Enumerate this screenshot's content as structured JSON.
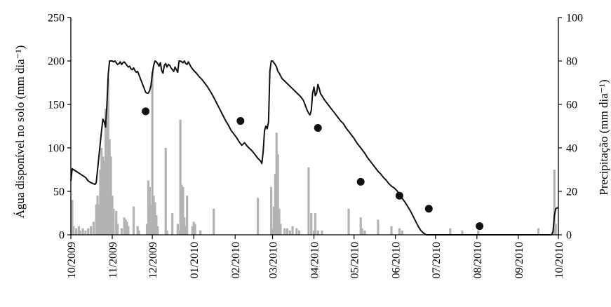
{
  "chart_data": {
    "type": "bar",
    "ylabel_left": "Água disponível no solo (mm dia⁻¹)",
    "ylabel_right": "Precipitação (mm dia⁻¹)",
    "y_left_range": [
      0,
      250
    ],
    "y_left_ticks": [
      "0",
      "50",
      "100",
      "150",
      "200",
      "250"
    ],
    "y_right_range": [
      0,
      100
    ],
    "y_right_ticks": [
      "0",
      "20",
      "40",
      "60",
      "80",
      "100"
    ],
    "x_range": [
      0,
      365
    ],
    "x_ticks": [
      {
        "x": 0,
        "label": "10/2009"
      },
      {
        "x": 31,
        "label": "11/2009"
      },
      {
        "x": 61,
        "label": "12/2009"
      },
      {
        "x": 92,
        "label": "01/2010"
      },
      {
        "x": 123,
        "label": "02/2010"
      },
      {
        "x": 151,
        "label": "03/2010"
      },
      {
        "x": 182,
        "label": "04/2010"
      },
      {
        "x": 212,
        "label": "05/2010"
      },
      {
        "x": 243,
        "label": "06/2010"
      },
      {
        "x": 273,
        "label": "07/2010"
      },
      {
        "x": 304,
        "label": "08/2010"
      },
      {
        "x": 335,
        "label": "09/2010"
      },
      {
        "x": 365,
        "label": "10/2010"
      }
    ],
    "grid": false,
    "colors": {
      "water_line": "#111111",
      "rain_bars": "#b3b3b3",
      "points": "#111111"
    },
    "series": [
      {
        "type": "line",
        "axis": "left",
        "points": [
          [
            0,
            62
          ],
          [
            1,
            76
          ],
          [
            3,
            74
          ],
          [
            5,
            72
          ],
          [
            7,
            70
          ],
          [
            9,
            68
          ],
          [
            11,
            66
          ],
          [
            13,
            62
          ],
          [
            15,
            60
          ],
          [
            18,
            58
          ],
          [
            19,
            60
          ],
          [
            20,
            75
          ],
          [
            21,
            90
          ],
          [
            22,
            105
          ],
          [
            23,
            120
          ],
          [
            24,
            133
          ],
          [
            25,
            130
          ],
          [
            26,
            124
          ],
          [
            27,
            150
          ],
          [
            28,
            185
          ],
          [
            29,
            200
          ],
          [
            30,
            200
          ],
          [
            31,
            200
          ],
          [
            32,
            199
          ],
          [
            33,
            200
          ],
          [
            34,
            198
          ],
          [
            35,
            196
          ],
          [
            36,
            197
          ],
          [
            37,
            199
          ],
          [
            38,
            196
          ],
          [
            39,
            198
          ],
          [
            40,
            199
          ],
          [
            41,
            197
          ],
          [
            42,
            195
          ],
          [
            43,
            193
          ],
          [
            44,
            194
          ],
          [
            45,
            191
          ],
          [
            46,
            190
          ],
          [
            47,
            192
          ],
          [
            48,
            189
          ],
          [
            49,
            187
          ],
          [
            50,
            188
          ],
          [
            51,
            184
          ],
          [
            52,
            180
          ],
          [
            53,
            176
          ],
          [
            54,
            172
          ],
          [
            55,
            168
          ],
          [
            56,
            164
          ],
          [
            57,
            163
          ],
          [
            58,
            163
          ],
          [
            59,
            166
          ],
          [
            60,
            172
          ],
          [
            61,
            185
          ],
          [
            62,
            195
          ],
          [
            63,
            200
          ],
          [
            64,
            199
          ],
          [
            65,
            197
          ],
          [
            66,
            194
          ],
          [
            67,
            198
          ],
          [
            68,
            189
          ],
          [
            69,
            186
          ],
          [
            70,
            195
          ],
          [
            71,
            197
          ],
          [
            72,
            193
          ],
          [
            73,
            196
          ],
          [
            74,
            195
          ],
          [
            75,
            192
          ],
          [
            76,
            190
          ],
          [
            77,
            188
          ],
          [
            78,
            193
          ],
          [
            79,
            190
          ],
          [
            80,
            187
          ],
          [
            81,
            200
          ],
          [
            82,
            200
          ],
          [
            83,
            199
          ],
          [
            84,
            198
          ],
          [
            85,
            200
          ],
          [
            86,
            197
          ],
          [
            87,
            196
          ],
          [
            88,
            199
          ],
          [
            89,
            196
          ],
          [
            90,
            193
          ],
          [
            92,
            189
          ],
          [
            94,
            186
          ],
          [
            96,
            182
          ],
          [
            98,
            179
          ],
          [
            100,
            175
          ],
          [
            102,
            171
          ],
          [
            104,
            166
          ],
          [
            106,
            161
          ],
          [
            108,
            155
          ],
          [
            110,
            149
          ],
          [
            112,
            143
          ],
          [
            114,
            137
          ],
          [
            116,
            131
          ],
          [
            118,
            126
          ],
          [
            120,
            120
          ],
          [
            122,
            116
          ],
          [
            124,
            112
          ],
          [
            126,
            107
          ],
          [
            128,
            103
          ],
          [
            130,
            106
          ],
          [
            132,
            102
          ],
          [
            134,
            99
          ],
          [
            136,
            96
          ],
          [
            138,
            92
          ],
          [
            140,
            88
          ],
          [
            142,
            85
          ],
          [
            143,
            82
          ],
          [
            144,
            96
          ],
          [
            145,
            120
          ],
          [
            146,
            125
          ],
          [
            147,
            122
          ],
          [
            148,
            130
          ],
          [
            149,
            188
          ],
          [
            150,
            200
          ],
          [
            151,
            200
          ],
          [
            152,
            198
          ],
          [
            153,
            196
          ],
          [
            154,
            193
          ],
          [
            155,
            188
          ],
          [
            156,
            186
          ],
          [
            157,
            183
          ],
          [
            158,
            180
          ],
          [
            160,
            177
          ],
          [
            162,
            174
          ],
          [
            164,
            171
          ],
          [
            166,
            168
          ],
          [
            168,
            165
          ],
          [
            170,
            162
          ],
          [
            172,
            159
          ],
          [
            174,
            155
          ],
          [
            175,
            151
          ],
          [
            176,
            147
          ],
          [
            177,
            143
          ],
          [
            178,
            140
          ],
          [
            179,
            138
          ],
          [
            180,
            143
          ],
          [
            181,
            163
          ],
          [
            182,
            170
          ],
          [
            183,
            160
          ],
          [
            184,
            163
          ],
          [
            185,
            173
          ],
          [
            186,
            168
          ],
          [
            187,
            162
          ],
          [
            188,
            160
          ],
          [
            190,
            155
          ],
          [
            192,
            151
          ],
          [
            194,
            147
          ],
          [
            196,
            143
          ],
          [
            198,
            139
          ],
          [
            200,
            135
          ],
          [
            202,
            131
          ],
          [
            204,
            128
          ],
          [
            206,
            123
          ],
          [
            208,
            119
          ],
          [
            210,
            115
          ],
          [
            212,
            111
          ],
          [
            214,
            106
          ],
          [
            216,
            102
          ],
          [
            218,
            98
          ],
          [
            220,
            94
          ],
          [
            222,
            89
          ],
          [
            224,
            85
          ],
          [
            226,
            81
          ],
          [
            228,
            77
          ],
          [
            230,
            73
          ],
          [
            232,
            70
          ],
          [
            234,
            66
          ],
          [
            236,
            63
          ],
          [
            238,
            59
          ],
          [
            240,
            56
          ],
          [
            242,
            54
          ],
          [
            244,
            51
          ],
          [
            246,
            47
          ],
          [
            248,
            42
          ],
          [
            250,
            38
          ],
          [
            252,
            33
          ],
          [
            254,
            28
          ],
          [
            256,
            22
          ],
          [
            258,
            16
          ],
          [
            260,
            10
          ],
          [
            262,
            5
          ],
          [
            264,
            2
          ],
          [
            266,
            0
          ],
          [
            268,
            0
          ],
          [
            300,
            0
          ],
          [
            330,
            0
          ],
          [
            355,
            0
          ],
          [
            360,
            0
          ],
          [
            361,
            4
          ],
          [
            362,
            22
          ],
          [
            363,
            30
          ],
          [
            364,
            31
          ],
          [
            365,
            31
          ]
        ]
      },
      {
        "type": "scatter",
        "axis": "left",
        "points": [
          [
            56,
            142
          ],
          [
            127,
            131
          ],
          [
            185,
            123
          ],
          [
            217,
            61
          ],
          [
            246,
            45
          ],
          [
            268,
            30
          ],
          [
            306,
            10
          ]
        ]
      },
      {
        "type": "bar",
        "axis": "right",
        "points": [
          [
            1,
            16
          ],
          [
            2,
            4
          ],
          [
            4,
            3
          ],
          [
            6,
            4
          ],
          [
            7,
            2
          ],
          [
            9,
            3
          ],
          [
            11,
            2
          ],
          [
            13,
            3
          ],
          [
            15,
            4
          ],
          [
            17,
            6
          ],
          [
            19,
            14
          ],
          [
            20,
            18
          ],
          [
            21,
            14
          ],
          [
            22,
            30
          ],
          [
            23,
            40
          ],
          [
            24,
            36
          ],
          [
            25,
            34
          ],
          [
            26,
            58
          ],
          [
            27,
            52
          ],
          [
            28,
            72
          ],
          [
            29,
            44
          ],
          [
            30,
            36
          ],
          [
            31,
            18
          ],
          [
            32,
            12
          ],
          [
            34,
            11
          ],
          [
            35,
            5
          ],
          [
            38,
            3
          ],
          [
            40,
            8
          ],
          [
            41,
            7
          ],
          [
            42,
            6
          ],
          [
            43,
            4
          ],
          [
            47,
            13
          ],
          [
            50,
            4
          ],
          [
            51,
            2
          ],
          [
            57,
            5
          ],
          [
            58,
            25
          ],
          [
            59,
            22
          ],
          [
            60,
            14
          ],
          [
            61,
            75
          ],
          [
            62,
            18
          ],
          [
            63,
            15
          ],
          [
            64,
            9
          ],
          [
            65,
            4
          ],
          [
            71,
            40
          ],
          [
            72,
            2
          ],
          [
            76,
            10
          ],
          [
            80,
            5
          ],
          [
            81,
            2
          ],
          [
            82,
            53
          ],
          [
            83,
            23
          ],
          [
            84,
            22
          ],
          [
            85,
            8
          ],
          [
            86,
            4
          ],
          [
            87,
            18
          ],
          [
            91,
            4
          ],
          [
            92,
            6
          ],
          [
            93,
            5
          ],
          [
            97,
            2
          ],
          [
            107,
            12
          ],
          [
            140,
            17
          ],
          [
            150,
            22
          ],
          [
            151,
            3
          ],
          [
            152,
            13
          ],
          [
            153,
            28
          ],
          [
            154,
            47
          ],
          [
            155,
            37
          ],
          [
            156,
            12
          ],
          [
            157,
            5
          ],
          [
            160,
            3
          ],
          [
            162,
            3
          ],
          [
            164,
            2
          ],
          [
            166,
            4
          ],
          [
            169,
            3
          ],
          [
            171,
            2
          ],
          [
            178,
            31
          ],
          [
            180,
            10
          ],
          [
            182,
            2
          ],
          [
            183,
            10
          ],
          [
            185,
            2
          ],
          [
            188,
            2
          ],
          [
            208,
            12
          ],
          [
            217,
            8
          ],
          [
            218,
            3
          ],
          [
            220,
            2
          ],
          [
            230,
            7
          ],
          [
            240,
            4
          ],
          [
            246,
            3
          ],
          [
            248,
            2
          ],
          [
            284,
            3
          ],
          [
            293,
            2
          ],
          [
            305,
            2
          ],
          [
            350,
            3
          ],
          [
            362,
            30
          ],
          [
            363,
            5
          ]
        ]
      }
    ]
  }
}
